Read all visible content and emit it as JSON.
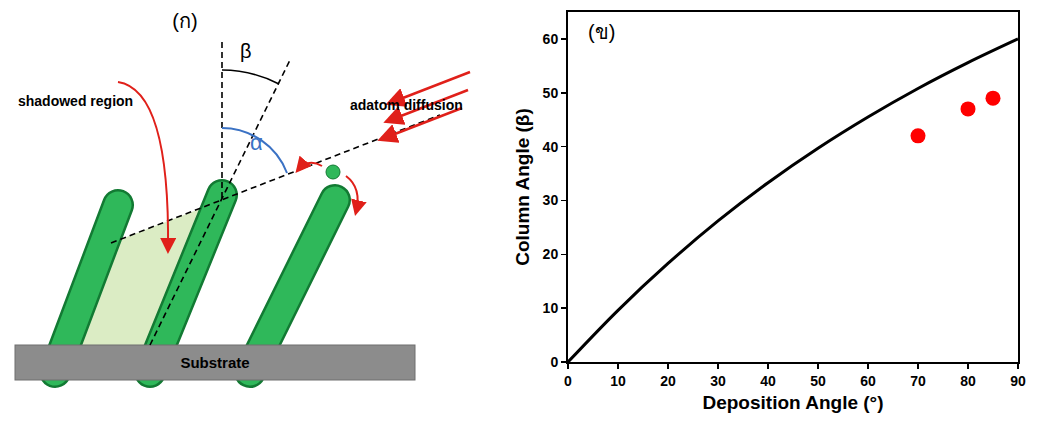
{
  "diagram": {
    "label": "(ก)",
    "beta": "β",
    "alpha": "α",
    "shadowed_region": "shadowed region",
    "adatom_diffusion": "adatom diffusion",
    "substrate": "Substrate"
  },
  "chart_data": {
    "type": "line",
    "label": "(ข)",
    "x_label": "Deposition Angle (°)",
    "y_label": "Column Angle (β)",
    "xlim": [
      0,
      90
    ],
    "ylim": [
      0,
      65
    ],
    "xticks": [
      0,
      10,
      20,
      30,
      40,
      50,
      60,
      70,
      80,
      90
    ],
    "yticks": [
      0,
      10,
      20,
      30,
      40,
      50,
      60
    ],
    "grid": false,
    "series": [
      {
        "type": "line",
        "color": "#000000",
        "line_style": "solid",
        "x": [
          0,
          10,
          20,
          30,
          40,
          50,
          60,
          70,
          80,
          90
        ],
        "values": [
          0,
          9.6,
          18.3,
          26.2,
          33.3,
          39.7,
          45.5,
          50.8,
          55.6,
          60
        ]
      },
      {
        "type": "scatter",
        "color": "#ff0000",
        "marker": "circle",
        "x": [
          70,
          80,
          85
        ],
        "values": [
          42,
          47,
          49
        ]
      }
    ]
  }
}
